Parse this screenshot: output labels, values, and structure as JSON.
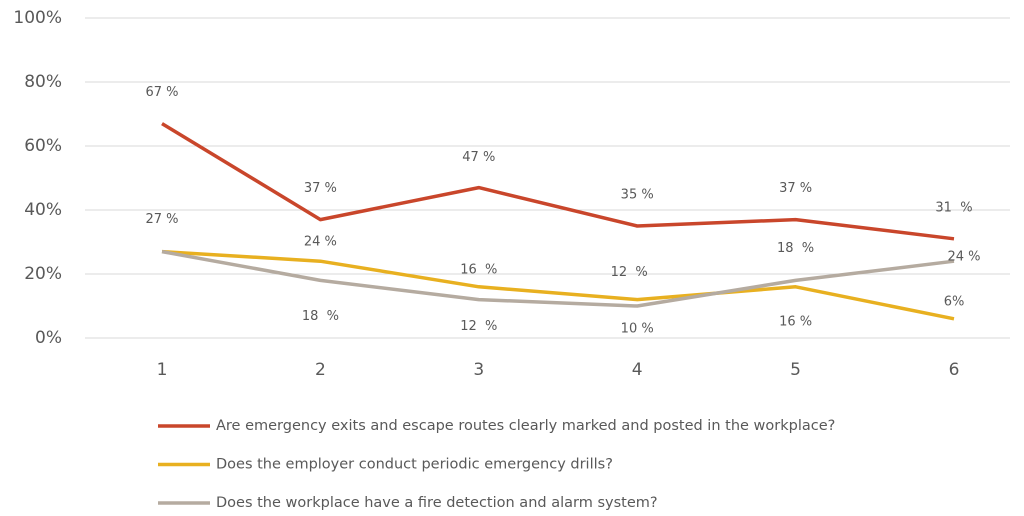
{
  "chart_data": {
    "type": "line",
    "categories": [
      "1",
      "2",
      "3",
      "4",
      "5",
      "6"
    ],
    "series": [
      {
        "name": "Are emergency exits and escape routes clearly marked and posted in the workplace?",
        "color": "#c9462b",
        "values": [
          67,
          37,
          47,
          35,
          37,
          31
        ],
        "value_labels": [
          "67 %",
          "37 %",
          "47 %",
          "35 %",
          "37 %",
          "31  %"
        ]
      },
      {
        "name": "Does the employer conduct periodic emergency drills?",
        "color": "#e8b020",
        "values": [
          27,
          24,
          16,
          12,
          16,
          6
        ],
        "value_labels": [
          "27 %",
          "24 %",
          "16  %",
          "12  %",
          "16 %",
          "6%"
        ]
      },
      {
        "name": "Does the workplace have a fire detection and alarm system?",
        "color": "#b5aba0",
        "values": [
          27,
          18,
          12,
          10,
          18,
          24
        ],
        "value_labels": [
          null,
          "18  %",
          "12  %",
          "10 %",
          "18  %",
          "24 %"
        ]
      }
    ],
    "ylim": [
      0,
      100
    ],
    "yticks": [
      {
        "value": 0,
        "label": "0%"
      },
      {
        "value": 20,
        "label": "20%"
      },
      {
        "value": 40,
        "label": "40%"
      },
      {
        "value": 60,
        "label": "60%"
      },
      {
        "value": 80,
        "label": "80%"
      },
      {
        "value": 100,
        "label": "100%"
      }
    ],
    "grid": true,
    "legend": "bottom"
  }
}
